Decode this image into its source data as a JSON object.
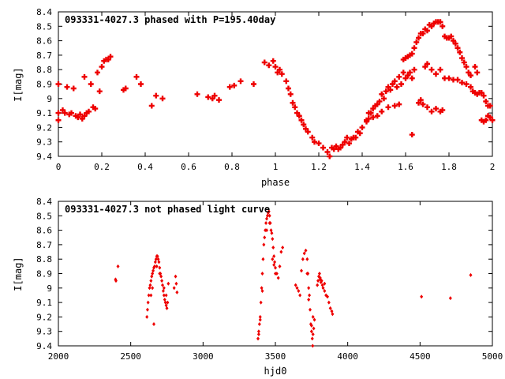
{
  "chart_data": [
    {
      "type": "scatter",
      "title": "093331-4027.3 phased with P=195.40day",
      "xlabel": "phase",
      "ylabel": "I[mag]",
      "xlim": [
        0,
        2
      ],
      "ylim": [
        9.4,
        8.4
      ],
      "y_inverted": true,
      "grid": false,
      "color": "#ee0000",
      "xticks": [
        "0",
        "0.2",
        "0.4",
        "0.6",
        "0.8",
        "1",
        "1.2",
        "1.4",
        "1.6",
        "1.8",
        "2"
      ],
      "xtick_values": [
        0,
        0.2,
        0.4,
        0.6,
        0.8,
        1.0,
        1.2,
        1.4,
        1.6,
        1.8,
        2.0
      ],
      "yticks": [
        "8.4",
        "8.5",
        "8.6",
        "8.7",
        "8.8",
        "8.9",
        "9",
        "9.1",
        "9.2",
        "9.3",
        "9.4"
      ],
      "ytick_values": [
        8.4,
        8.5,
        8.6,
        8.7,
        8.8,
        8.9,
        9.0,
        9.1,
        9.2,
        9.3,
        9.4
      ],
      "points": [
        [
          0.0,
          8.9
        ],
        [
          0.0,
          9.1
        ],
        [
          0.0,
          9.15
        ],
        [
          0.02,
          9.08
        ],
        [
          0.03,
          9.1
        ],
        [
          0.04,
          8.92
        ],
        [
          0.05,
          9.11
        ],
        [
          0.06,
          9.1
        ],
        [
          0.07,
          8.93
        ],
        [
          0.08,
          9.12
        ],
        [
          0.09,
          9.13
        ],
        [
          0.1,
          9.11
        ],
        [
          0.11,
          9.14
        ],
        [
          0.12,
          9.12
        ],
        [
          0.12,
          8.85
        ],
        [
          0.13,
          9.1
        ],
        [
          0.14,
          9.09
        ],
        [
          0.15,
          8.9
        ],
        [
          0.16,
          9.06
        ],
        [
          0.17,
          9.07
        ],
        [
          0.18,
          8.82
        ],
        [
          0.19,
          8.95
        ],
        [
          0.2,
          8.78
        ],
        [
          0.21,
          8.74
        ],
        [
          0.22,
          8.73
        ],
        [
          0.23,
          8.73
        ],
        [
          0.24,
          8.71
        ],
        [
          0.3,
          8.94
        ],
        [
          0.31,
          8.93
        ],
        [
          0.36,
          8.85
        ],
        [
          0.38,
          8.9
        ],
        [
          0.43,
          9.05
        ],
        [
          0.45,
          8.98
        ],
        [
          0.48,
          9.0
        ],
        [
          0.64,
          8.97
        ],
        [
          0.69,
          8.99
        ],
        [
          0.71,
          9.0
        ],
        [
          0.72,
          8.98
        ],
        [
          0.74,
          9.01
        ],
        [
          0.79,
          8.92
        ],
        [
          0.81,
          8.91
        ],
        [
          0.84,
          8.88
        ],
        [
          0.9,
          8.9
        ],
        [
          0.95,
          8.75
        ],
        [
          0.97,
          8.77
        ],
        [
          0.99,
          8.74
        ],
        [
          1.0,
          8.78
        ],
        [
          1.01,
          8.82
        ],
        [
          1.02,
          8.8
        ],
        [
          1.03,
          8.83
        ],
        [
          1.05,
          8.88
        ],
        [
          1.06,
          8.93
        ],
        [
          1.07,
          8.97
        ],
        [
          1.08,
          9.03
        ],
        [
          1.09,
          9.06
        ],
        [
          1.1,
          9.1
        ],
        [
          1.11,
          9.12
        ],
        [
          1.12,
          9.15
        ],
        [
          1.13,
          9.18
        ],
        [
          1.14,
          9.21
        ],
        [
          1.15,
          9.23
        ],
        [
          1.17,
          9.27
        ],
        [
          1.18,
          9.3
        ],
        [
          1.2,
          9.31
        ],
        [
          1.22,
          9.34
        ],
        [
          1.24,
          9.37
        ],
        [
          1.25,
          9.4
        ],
        [
          1.26,
          9.34
        ],
        [
          1.27,
          9.35
        ],
        [
          1.28,
          9.33
        ],
        [
          1.29,
          9.35
        ],
        [
          1.3,
          9.34
        ],
        [
          1.31,
          9.32
        ],
        [
          1.32,
          9.3
        ],
        [
          1.33,
          9.27
        ],
        [
          1.34,
          9.31
        ],
        [
          1.35,
          9.28
        ],
        [
          1.36,
          9.27
        ],
        [
          1.37,
          9.27
        ],
        [
          1.38,
          9.23
        ],
        [
          1.39,
          9.24
        ],
        [
          1.4,
          9.2
        ],
        [
          1.42,
          9.15
        ],
        [
          1.43,
          9.1
        ],
        [
          1.44,
          9.1
        ],
        [
          1.45,
          9.07
        ],
        [
          1.46,
          9.05
        ],
        [
          1.47,
          9.04
        ],
        [
          1.48,
          9.02
        ],
        [
          1.49,
          8.97
        ],
        [
          1.5,
          9.0
        ],
        [
          1.51,
          8.95
        ],
        [
          1.52,
          8.92
        ],
        [
          1.53,
          8.94
        ],
        [
          1.54,
          8.9
        ],
        [
          1.55,
          8.88
        ],
        [
          1.56,
          8.92
        ],
        [
          1.57,
          8.85
        ],
        [
          1.58,
          8.9
        ],
        [
          1.59,
          8.82
        ],
        [
          1.6,
          8.86
        ],
        [
          1.61,
          8.84
        ],
        [
          1.62,
          8.82
        ],
        [
          1.63,
          8.86
        ],
        [
          1.64,
          8.8
        ],
        [
          1.59,
          8.73
        ],
        [
          1.6,
          8.72
        ],
        [
          1.61,
          8.71
        ],
        [
          1.62,
          8.7
        ],
        [
          1.63,
          8.69
        ],
        [
          1.64,
          8.65
        ],
        [
          1.65,
          8.61
        ],
        [
          1.66,
          8.58
        ],
        [
          1.67,
          8.55
        ],
        [
          1.68,
          8.55
        ],
        [
          1.69,
          8.52
        ],
        [
          1.7,
          8.53
        ],
        [
          1.71,
          8.49
        ],
        [
          1.72,
          8.5
        ],
        [
          1.73,
          8.48
        ],
        [
          1.74,
          8.47
        ],
        [
          1.75,
          8.47
        ],
        [
          1.76,
          8.47
        ],
        [
          1.77,
          8.5
        ],
        [
          1.78,
          8.57
        ],
        [
          1.79,
          8.58
        ],
        [
          1.8,
          8.58
        ],
        [
          1.81,
          8.57
        ],
        [
          1.82,
          8.6
        ],
        [
          1.83,
          8.62
        ],
        [
          1.84,
          8.65
        ],
        [
          1.85,
          8.68
        ],
        [
          1.86,
          8.72
        ],
        [
          1.87,
          8.75
        ],
        [
          1.88,
          8.78
        ],
        [
          1.89,
          8.82
        ],
        [
          1.9,
          8.84
        ],
        [
          1.92,
          8.78
        ],
        [
          1.93,
          8.82
        ],
        [
          1.69,
          8.78
        ],
        [
          1.7,
          8.76
        ],
        [
          1.72,
          8.8
        ],
        [
          1.74,
          8.83
        ],
        [
          1.76,
          8.8
        ],
        [
          1.78,
          8.86
        ],
        [
          1.8,
          8.86
        ],
        [
          1.82,
          8.87
        ],
        [
          1.84,
          8.87
        ],
        [
          1.86,
          8.89
        ],
        [
          1.88,
          8.9
        ],
        [
          1.9,
          8.92
        ],
        [
          1.91,
          8.95
        ],
        [
          1.92,
          8.96
        ],
        [
          1.93,
          8.97
        ],
        [
          1.94,
          8.96
        ],
        [
          1.95,
          8.96
        ],
        [
          1.96,
          8.98
        ],
        [
          1.97,
          9.02
        ],
        [
          1.98,
          9.05
        ],
        [
          1.99,
          9.05
        ],
        [
          1.95,
          9.15
        ],
        [
          1.96,
          9.16
        ],
        [
          1.97,
          9.15
        ],
        [
          1.98,
          9.12
        ],
        [
          1.99,
          9.13
        ],
        [
          2.0,
          9.15
        ],
        [
          1.66,
          9.03
        ],
        [
          1.67,
          9.01
        ],
        [
          1.68,
          9.04
        ],
        [
          1.7,
          9.06
        ],
        [
          1.72,
          9.09
        ],
        [
          1.74,
          9.07
        ],
        [
          1.76,
          9.09
        ],
        [
          1.77,
          9.08
        ],
        [
          1.57,
          9.04
        ],
        [
          1.55,
          9.05
        ],
        [
          1.52,
          9.06
        ],
        [
          1.49,
          9.09
        ],
        [
          1.47,
          9.12
        ],
        [
          1.45,
          9.13
        ],
        [
          1.43,
          9.14
        ],
        [
          1.42,
          9.16
        ],
        [
          1.63,
          9.25
        ]
      ]
    },
    {
      "type": "scatter",
      "title": "093331-4027.3 not phased light curve",
      "xlabel": "hjd0",
      "ylabel": "I[mag]",
      "xlim": [
        2000,
        5000
      ],
      "ylim": [
        9.4,
        8.4
      ],
      "y_inverted": true,
      "grid": false,
      "color": "#ee0000",
      "xticks": [
        "2000",
        "2500",
        "3000",
        "3500",
        "4000",
        "4500",
        "5000"
      ],
      "xtick_values": [
        2000,
        2500,
        3000,
        3500,
        4000,
        4500,
        5000
      ],
      "yticks": [
        "8.4",
        "8.5",
        "8.6",
        "8.7",
        "8.8",
        "8.9",
        "9",
        "9.1",
        "9.2",
        "9.3",
        "9.4"
      ],
      "ytick_values": [
        8.4,
        8.5,
        8.6,
        8.7,
        8.8,
        8.9,
        9.0,
        9.1,
        9.2,
        9.3,
        9.4
      ],
      "points": [
        [
          2395,
          8.94
        ],
        [
          2398,
          8.95
        ],
        [
          2412,
          8.85
        ],
        [
          2612,
          9.2
        ],
        [
          2616,
          9.15
        ],
        [
          2620,
          9.1
        ],
        [
          2625,
          9.05
        ],
        [
          2630,
          9.0
        ],
        [
          2635,
          8.98
        ],
        [
          2640,
          8.95
        ],
        [
          2645,
          8.92
        ],
        [
          2650,
          8.9
        ],
        [
          2655,
          8.88
        ],
        [
          2660,
          8.86
        ],
        [
          2665,
          8.85
        ],
        [
          2670,
          8.82
        ],
        [
          2675,
          8.8
        ],
        [
          2680,
          8.78
        ],
        [
          2685,
          8.78
        ],
        [
          2690,
          8.8
        ],
        [
          2695,
          8.82
        ],
        [
          2700,
          8.86
        ],
        [
          2705,
          8.9
        ],
        [
          2710,
          8.92
        ],
        [
          2715,
          8.95
        ],
        [
          2720,
          8.98
        ],
        [
          2725,
          9.02
        ],
        [
          2730,
          9.05
        ],
        [
          2735,
          9.08
        ],
        [
          2740,
          9.1
        ],
        [
          2745,
          9.12
        ],
        [
          2750,
          9.14
        ],
        [
          2660,
          9.25
        ],
        [
          2640,
          9.05
        ],
        [
          2650,
          9.0
        ],
        [
          2680,
          8.85
        ],
        [
          2700,
          8.9
        ],
        [
          2730,
          9.0
        ],
        [
          2745,
          9.05
        ],
        [
          2755,
          9.1
        ],
        [
          2760,
          8.97
        ],
        [
          2800,
          9.0
        ],
        [
          2810,
          8.92
        ],
        [
          2815,
          8.97
        ],
        [
          2820,
          9.03
        ],
        [
          3380,
          9.35
        ],
        [
          3385,
          9.3
        ],
        [
          3390,
          9.25
        ],
        [
          3395,
          9.2
        ],
        [
          3400,
          9.1
        ],
        [
          3405,
          9.0
        ],
        [
          3410,
          8.9
        ],
        [
          3415,
          8.8
        ],
        [
          3420,
          8.7
        ],
        [
          3425,
          8.65
        ],
        [
          3430,
          8.6
        ],
        [
          3435,
          8.55
        ],
        [
          3440,
          8.52
        ],
        [
          3445,
          8.5
        ],
        [
          3450,
          8.48
        ],
        [
          3455,
          8.47
        ],
        [
          3460,
          8.5
        ],
        [
          3465,
          8.55
        ],
        [
          3470,
          8.6
        ],
        [
          3475,
          8.62
        ],
        [
          3480,
          8.66
        ],
        [
          3485,
          8.72
        ],
        [
          3490,
          8.78
        ],
        [
          3495,
          8.82
        ],
        [
          3500,
          8.86
        ],
        [
          3510,
          8.9
        ],
        [
          3520,
          8.93
        ],
        [
          3530,
          8.85
        ],
        [
          3540,
          8.75
        ],
        [
          3550,
          8.72
        ],
        [
          3385,
          9.32
        ],
        [
          3395,
          9.22
        ],
        [
          3410,
          9.02
        ],
        [
          3440,
          8.6
        ],
        [
          3460,
          8.55
        ],
        [
          3480,
          8.8
        ],
        [
          3490,
          8.84
        ],
        [
          3500,
          8.9
        ],
        [
          3640,
          8.98
        ],
        [
          3650,
          9.0
        ],
        [
          3660,
          9.02
        ],
        [
          3670,
          9.05
        ],
        [
          3680,
          8.88
        ],
        [
          3690,
          8.8
        ],
        [
          3700,
          8.76
        ],
        [
          3710,
          8.74
        ],
        [
          3720,
          8.8
        ],
        [
          3725,
          8.9
        ],
        [
          3730,
          9.0
        ],
        [
          3735,
          9.05
        ],
        [
          3740,
          9.15
        ],
        [
          3745,
          9.25
        ],
        [
          3750,
          9.3
        ],
        [
          3755,
          9.35
        ],
        [
          3758,
          9.4
        ],
        [
          3760,
          9.32
        ],
        [
          3765,
          9.28
        ],
        [
          3770,
          9.22
        ],
        [
          3720,
          8.9
        ],
        [
          3730,
          9.08
        ],
        [
          3750,
          9.26
        ],
        [
          3760,
          9.2
        ],
        [
          3790,
          8.98
        ],
        [
          3795,
          8.95
        ],
        [
          3800,
          8.92
        ],
        [
          3805,
          8.9
        ],
        [
          3810,
          8.94
        ],
        [
          3815,
          8.96
        ],
        [
          3820,
          8.95
        ],
        [
          3825,
          8.98
        ],
        [
          3830,
          9.0
        ],
        [
          3840,
          9.02
        ],
        [
          3850,
          9.05
        ],
        [
          3860,
          9.06
        ],
        [
          3870,
          9.1
        ],
        [
          3880,
          9.14
        ],
        [
          3890,
          9.16
        ],
        [
          3895,
          9.18
        ],
        [
          3810,
          8.93
        ],
        [
          3840,
          8.97
        ],
        [
          4510,
          9.06
        ],
        [
          4710,
          9.07
        ],
        [
          4850,
          8.91
        ]
      ]
    }
  ]
}
